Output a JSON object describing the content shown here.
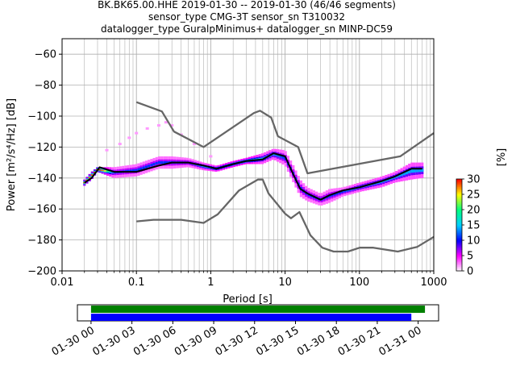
{
  "chart_data": [
    {
      "type": "heatmap",
      "title_lines": [
        "BK.BK65.00.HHE   2019-01-30 -- 2019-01-30  (46/46 segments)",
        "sensor_type CMG-3T sensor_sn T310032",
        "datalogger_type GuralpMinimus+ datalogger_sn MINP-DC59"
      ],
      "xlabel": "Period [s]",
      "ylabel": "Power [m²/s⁴/Hz] [dB]",
      "xscale": "log",
      "xlim": [
        0.01,
        1000
      ],
      "ylim": [
        -200,
        -50
      ],
      "xticks": [
        0.01,
        0.1,
        1,
        10,
        100,
        1000
      ],
      "xtick_labels": [
        "0.01",
        "0.1",
        "1",
        "10",
        "100",
        "1000"
      ],
      "yticks": [
        -200,
        -180,
        -160,
        -140,
        -120,
        -100,
        -80,
        -60
      ],
      "ytick_labels": [
        "−200",
        "−180",
        "−160",
        "−140",
        "−120",
        "−100",
        "−80",
        "−60"
      ],
      "grid": true,
      "colorbar": {
        "label": "[%]",
        "range": [
          0,
          30
        ],
        "ticks": [
          0,
          5,
          10,
          15,
          20,
          25,
          30
        ],
        "colormap": [
          "#ffffff",
          "#ff00ff",
          "#0000ff",
          "#00d0ff",
          "#00ff80",
          "#ffff00",
          "#ff0000"
        ]
      },
      "series": [
        {
          "name": "NHNM",
          "color": "#666666",
          "points": [
            [
              0.1,
              -91
            ],
            [
              0.22,
              -97
            ],
            [
              0.32,
              -110
            ],
            [
              0.8,
              -120
            ],
            [
              3.8,
              -98
            ],
            [
              4.6,
              -96.5
            ],
            [
              6.5,
              -101
            ],
            [
              8,
              -113
            ],
            [
              15,
              -120
            ],
            [
              20,
              -137
            ],
            [
              354,
              -126
            ],
            [
              1000,
              -111
            ]
          ]
        },
        {
          "name": "NLNM",
          "color": "#666666",
          "points": [
            [
              0.1,
              -168
            ],
            [
              0.17,
              -167
            ],
            [
              0.4,
              -167
            ],
            [
              0.8,
              -169
            ],
            [
              1.24,
              -163.5
            ],
            [
              2.4,
              -148
            ],
            [
              4.3,
              -141
            ],
            [
              5.0,
              -141
            ],
            [
              6.0,
              -150
            ],
            [
              10,
              -163
            ],
            [
              12,
              -166
            ],
            [
              15.6,
              -162
            ],
            [
              21.9,
              -177
            ],
            [
              31.6,
              -185
            ],
            [
              45,
              -187.5
            ],
            [
              70,
              -187.5
            ],
            [
              101,
              -185
            ],
            [
              154,
              -185
            ],
            [
              328,
              -187.5
            ],
            [
              600,
              -184.5
            ],
            [
              1000,
              -178
            ]
          ]
        },
        {
          "name": "mode",
          "color": "#000000",
          "points": [
            [
              0.02,
              -143
            ],
            [
              0.025,
              -140
            ],
            [
              0.032,
              -133
            ],
            [
              0.05,
              -136
            ],
            [
              0.1,
              -136
            ],
            [
              0.2,
              -132
            ],
            [
              0.3,
              -130
            ],
            [
              0.5,
              -130
            ],
            [
              0.8,
              -132
            ],
            [
              1.2,
              -134
            ],
            [
              2,
              -131
            ],
            [
              3,
              -129
            ],
            [
              5,
              -128
            ],
            [
              7,
              -124
            ],
            [
              10,
              -126
            ],
            [
              13,
              -138
            ],
            [
              16,
              -147
            ],
            [
              20,
              -150
            ],
            [
              30,
              -154
            ],
            [
              40,
              -151
            ],
            [
              60,
              -148
            ],
            [
              100,
              -146
            ],
            [
              200,
              -142
            ],
            [
              300,
              -139
            ],
            [
              500,
              -134
            ],
            [
              700,
              -134
            ]
          ]
        }
      ],
      "density": [
        {
          "x": 0.02,
          "y": [
            -145,
            -141
          ],
          "pct": 20
        },
        {
          "x": 0.025,
          "y": [
            -141,
            -136
          ],
          "pct": 20
        },
        {
          "x": 0.03,
          "y": [
            -136,
            -133
          ],
          "pct": 25
        },
        {
          "x": 0.05,
          "y": [
            -140,
            -133
          ],
          "pct": 8
        },
        {
          "x": 0.1,
          "y": [
            -139,
            -131
          ],
          "pct": 8
        },
        {
          "x": 0.2,
          "y": [
            -134,
            -126
          ],
          "pct": 8
        },
        {
          "x": 0.3,
          "y": [
            -134,
            -126
          ],
          "pct": 8
        },
        {
          "x": 0.5,
          "y": [
            -133,
            -127
          ],
          "pct": 8
        },
        {
          "x": 0.8,
          "y": [
            -135,
            -130
          ],
          "pct": 10
        },
        {
          "x": 1.2,
          "y": [
            -136,
            -132
          ],
          "pct": 12
        },
        {
          "x": 2,
          "y": [
            -133,
            -129
          ],
          "pct": 15
        },
        {
          "x": 3,
          "y": [
            -131,
            -127
          ],
          "pct": 15
        },
        {
          "x": 5,
          "y": [
            -131,
            -124
          ],
          "pct": 10
        },
        {
          "x": 7,
          "y": [
            -128,
            -121
          ],
          "pct": 10
        },
        {
          "x": 10,
          "y": [
            -132,
            -122
          ],
          "pct": 8
        },
        {
          "x": 13,
          "y": [
            -143,
            -132
          ],
          "pct": 8
        },
        {
          "x": 16,
          "y": [
            -152,
            -141
          ],
          "pct": 8
        },
        {
          "x": 20,
          "y": [
            -155,
            -146
          ],
          "pct": 8
        },
        {
          "x": 30,
          "y": [
            -158,
            -150
          ],
          "pct": 8
        },
        {
          "x": 40,
          "y": [
            -156,
            -147
          ],
          "pct": 8
        },
        {
          "x": 60,
          "y": [
            -152,
            -146
          ],
          "pct": 8
        },
        {
          "x": 100,
          "y": [
            -149,
            -143
          ],
          "pct": 10
        },
        {
          "x": 200,
          "y": [
            -146,
            -139
          ],
          "pct": 10
        },
        {
          "x": 300,
          "y": [
            -143,
            -136
          ],
          "pct": 10
        },
        {
          "x": 500,
          "y": [
            -141,
            -130
          ],
          "pct": 10
        },
        {
          "x": 700,
          "y": [
            -140,
            -130
          ],
          "pct": 10
        }
      ],
      "outliers": [
        {
          "x": 0.04,
          "y": -122,
          "pct": 2
        },
        {
          "x": 0.06,
          "y": -118,
          "pct": 2
        },
        {
          "x": 0.08,
          "y": -114,
          "pct": 2
        },
        {
          "x": 0.1,
          "y": -111,
          "pct": 2
        },
        {
          "x": 0.14,
          "y": -108,
          "pct": 2
        },
        {
          "x": 0.2,
          "y": -106,
          "pct": 2
        },
        {
          "x": 0.25,
          "y": -104,
          "pct": 2
        },
        {
          "x": 0.3,
          "y": -106,
          "pct": 2
        },
        {
          "x": 0.4,
          "y": -112,
          "pct": 2
        },
        {
          "x": 0.6,
          "y": -118,
          "pct": 2
        },
        {
          "x": 1,
          "y": -126,
          "pct": 2
        }
      ]
    },
    {
      "type": "timeline",
      "xlim_hours": [
        -1,
        25.5
      ],
      "xtick_hours": [
        0,
        3,
        6,
        9,
        12,
        15,
        18,
        21,
        24
      ],
      "xtick_labels": [
        "01-30 00",
        "01-30 03",
        "01-30 06",
        "01-30 09",
        "01-30 12",
        "01-30 15",
        "01-30 18",
        "01-30 21",
        "01-31 00"
      ],
      "bars": [
        {
          "color": "#008000",
          "start_hour": 0,
          "end_hour": 24.5
        },
        {
          "color": "#0000ff",
          "start_hour": 0,
          "end_hour": 23.5
        }
      ]
    }
  ]
}
